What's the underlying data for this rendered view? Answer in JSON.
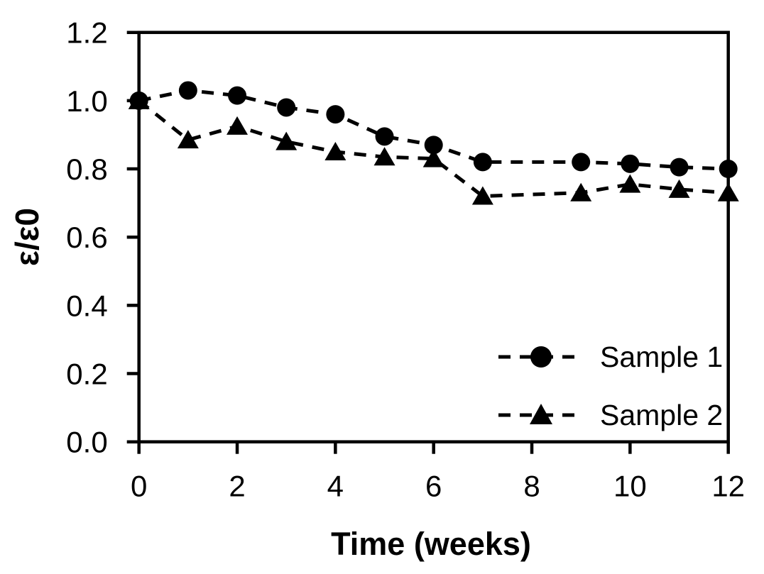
{
  "chart_data": {
    "type": "line",
    "title": "",
    "xlabel": "Time (weeks)",
    "ylabel": "ε/ε0",
    "xlim": [
      0,
      12
    ],
    "ylim": [
      0.0,
      1.2
    ],
    "x_ticks": [
      0,
      2,
      4,
      6,
      8,
      10,
      12
    ],
    "y_ticks": [
      "0.0",
      "0.2",
      "0.4",
      "0.6",
      "0.8",
      "1.0",
      "1.2"
    ],
    "grid": false,
    "legend_position": "inside-lower-right",
    "line_style": "dashed",
    "color": "#000000",
    "background": "#ffffff",
    "x": [
      0,
      1,
      2,
      3,
      4,
      5,
      6,
      7,
      9,
      10,
      11,
      12
    ],
    "series": [
      {
        "name": "Sample 1",
        "marker": "circle",
        "values": [
          1.0,
          1.03,
          1.015,
          0.98,
          0.96,
          0.895,
          0.87,
          0.82,
          0.82,
          0.815,
          0.805,
          0.8
        ]
      },
      {
        "name": "Sample 2",
        "marker": "triangle",
        "values": [
          1.0,
          0.885,
          0.925,
          0.88,
          0.85,
          0.835,
          0.83,
          0.72,
          0.73,
          0.755,
          0.74,
          0.73
        ]
      }
    ]
  }
}
